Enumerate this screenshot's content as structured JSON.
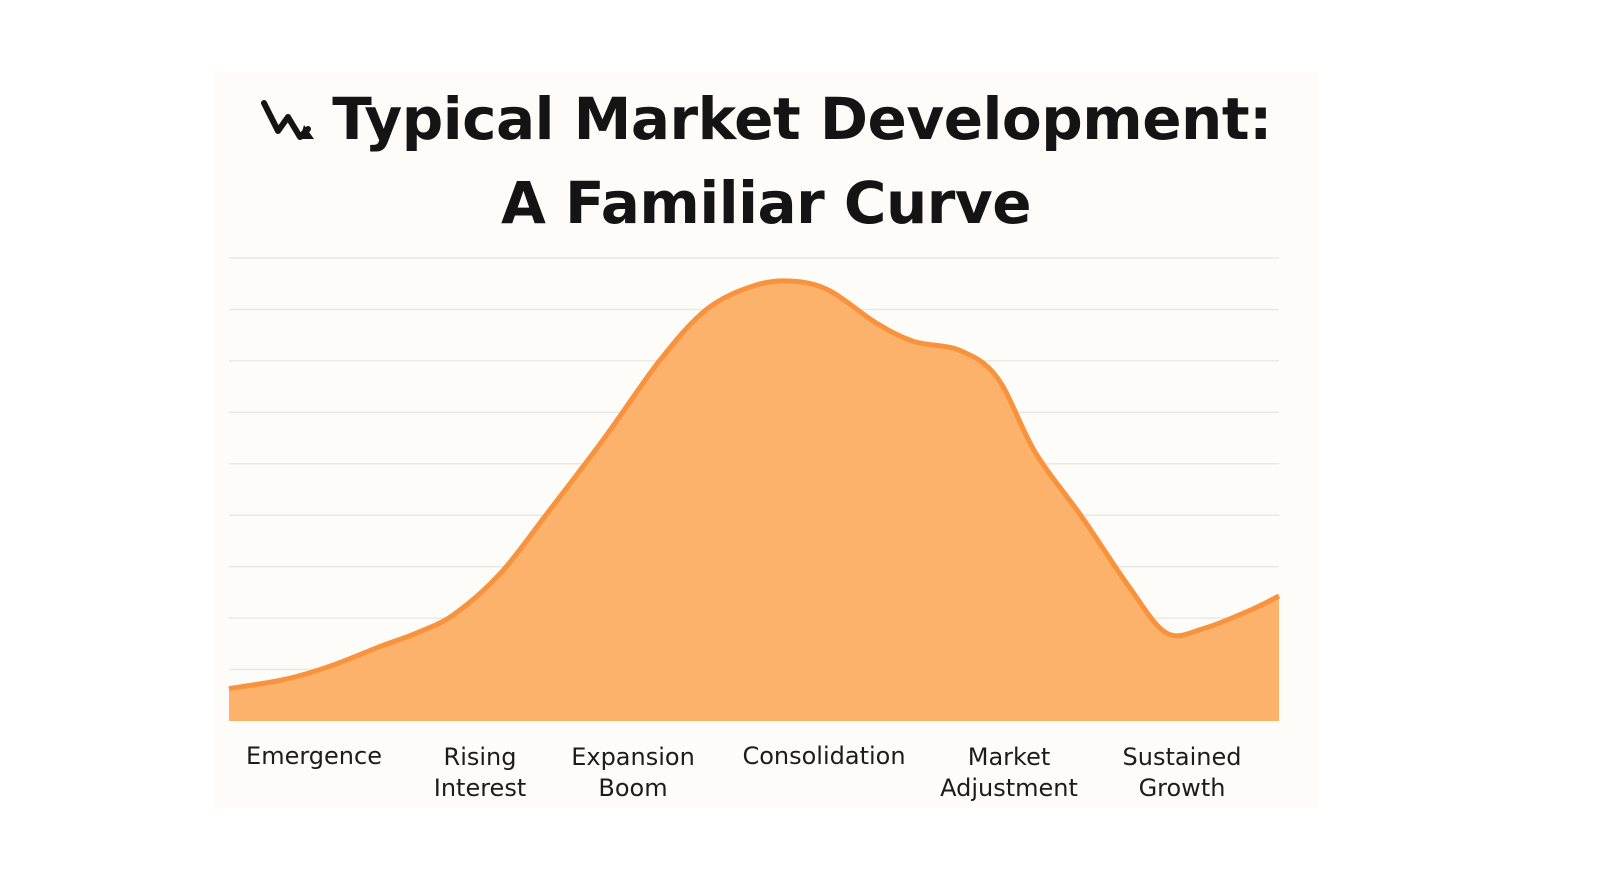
{
  "title": {
    "line1": "Typical Market Development:",
    "line2": "A Familiar Curve",
    "icon": "chart-decreasing-icon"
  },
  "colors": {
    "area_fill": "#fdb26b",
    "line_stroke": "#f8923c",
    "grid": "#ebe8e2",
    "background": "#fdfcf8"
  },
  "chart_data": {
    "type": "area",
    "title": "Typical Market Development: A Familiar Curve",
    "xlabel": "",
    "ylabel": "",
    "categories": [
      [
        "Emergence"
      ],
      [
        "Rising",
        "Interest"
      ],
      [
        "Expansion",
        "Boom"
      ],
      [
        "Consolidation"
      ],
      [
        "Market",
        "Adjustment"
      ],
      [
        "Sustained",
        "Growth"
      ]
    ],
    "series": [
      {
        "x": [
          0,
          0.3,
          0.55,
          0.8,
          1.0,
          1.2,
          1.45,
          1.7,
          2.0,
          2.3,
          2.55,
          2.8,
          3.0,
          3.2,
          3.45,
          3.65,
          3.9,
          4.1,
          4.3,
          4.55,
          4.8,
          5.0,
          5.2,
          5.45,
          5.6
        ],
        "values": [
          0.7,
          0.9,
          1.2,
          1.6,
          1.9,
          2.3,
          3.2,
          4.5,
          6.1,
          7.8,
          8.9,
          9.4,
          9.5,
          9.3,
          8.6,
          8.2,
          8.0,
          7.4,
          5.8,
          4.4,
          2.9,
          1.9,
          2.0,
          2.4,
          2.7
        ]
      }
    ],
    "xlim": [
      0,
      5.6
    ],
    "ylim": [
      0,
      10
    ],
    "grid": true,
    "legend": "none"
  }
}
